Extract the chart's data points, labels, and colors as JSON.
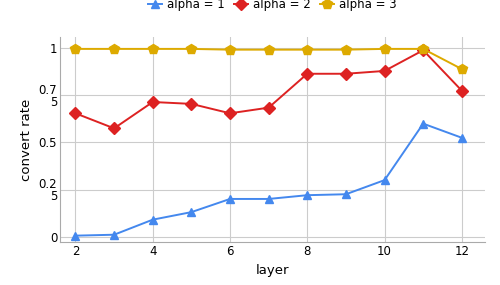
{
  "x": [
    2,
    3,
    4,
    5,
    6,
    7,
    8,
    9,
    10,
    11,
    12
  ],
  "alpha1": [
    0.005,
    0.01,
    0.09,
    0.13,
    0.2,
    0.2,
    0.22,
    0.225,
    0.3,
    0.6,
    0.525
  ],
  "alpha2": [
    0.655,
    0.575,
    0.715,
    0.705,
    0.655,
    0.685,
    0.865,
    0.865,
    0.88,
    0.99,
    0.775
  ],
  "alpha3": [
    0.997,
    0.997,
    0.997,
    0.997,
    0.993,
    0.993,
    0.993,
    0.993,
    0.997,
    0.997,
    0.89
  ],
  "colors": [
    "#4488ee",
    "#dd2222",
    "#ddaa00"
  ],
  "markers": [
    "^",
    "D",
    "p"
  ],
  "marker_sizes": [
    6,
    6,
    7
  ],
  "legend_labels": [
    "alpha = 1",
    "alpha = 2",
    "alpha = 3"
  ],
  "xlabel": "layer",
  "ylabel": "convert rate",
  "yticks": [
    0,
    0.25,
    0.5,
    0.75,
    1.0
  ],
  "xticks": [
    2,
    4,
    6,
    8,
    10,
    12
  ],
  "xlim": [
    1.6,
    12.6
  ],
  "ylim": [
    -0.03,
    1.06
  ],
  "background_color": "#ffffff",
  "grid_color": "#cccccc",
  "linewidth": 1.4,
  "spine_color": "#aaaaaa"
}
